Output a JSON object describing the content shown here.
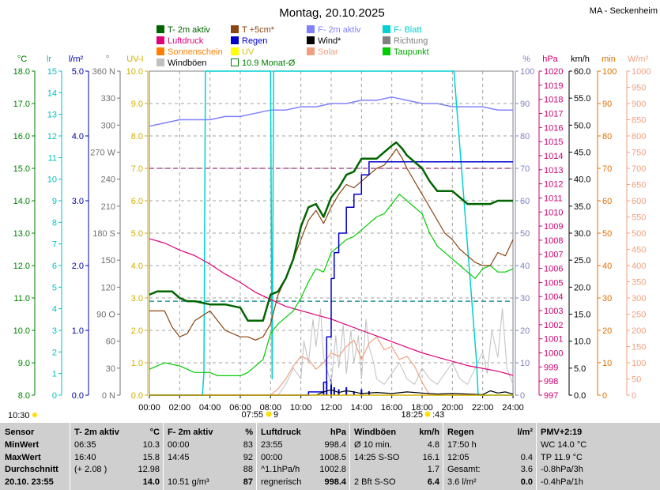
{
  "title": "Montag, 20.10.2025",
  "station": "MA - Seckenheim",
  "legend": [
    {
      "label": "T- 2m aktiv",
      "color": "#006400",
      "type": "box"
    },
    {
      "label": "T +5cm*",
      "color": "#8b4513",
      "type": "box"
    },
    {
      "label": "F- 2m aktiv",
      "color": "#8080ff",
      "type": "box"
    },
    {
      "label": "F- Blatt",
      "color": "#00d0d0",
      "type": "box"
    },
    {
      "label": "Luftdruck",
      "color": "#e0007a",
      "type": "box"
    },
    {
      "label": "Regen",
      "color": "#0000cc",
      "type": "box"
    },
    {
      "label": "Wind*",
      "color": "#000000",
      "type": "box"
    },
    {
      "label": "Richtung",
      "color": "#808080",
      "type": "box"
    },
    {
      "label": "Sonnenschein",
      "color": "#ff8000",
      "type": "box"
    },
    {
      "label": "UV",
      "color": "#ffff00",
      "type": "box"
    },
    {
      "label": "Solar",
      "color": "#f0a080",
      "type": "box"
    },
    {
      "label": "Taupunkt",
      "color": "#00cc00",
      "type": "box"
    },
    {
      "label": "Windböen",
      "color": "#c0c0c0",
      "type": "box"
    },
    {
      "label": "10.9 Monat-Ø",
      "color": "#008000",
      "type": "outline"
    }
  ],
  "legend_text_colors": {
    "T- 2m aktiv": "#006400",
    "T +5cm*": "#8b4513",
    "F- 2m aktiv": "#8080ff",
    "F- Blatt": "#00d0d0",
    "Luftdruck": "#e0007a",
    "Regen": "#0000cc",
    "Wind*": "#000000",
    "Richtung": "#808080",
    "Sonnenschein": "#ff8000",
    "UV": "#e0c000",
    "Solar": "#f0a080",
    "Taupunkt": "#00aa00",
    "Windböen": "#000000",
    "10.9 Monat-Ø": "#008000"
  },
  "axes": {
    "left": [
      {
        "unit": "°C",
        "color": "#008000",
        "ticks": [
          "18.0",
          "17.0",
          "16.0",
          "15.0",
          "14.0",
          "13.0",
          "12.0",
          "11.0",
          "10.0",
          "9.0",
          "8.0"
        ]
      },
      {
        "unit": "lr",
        "color": "#00c0c0",
        "ticks": [
          "15",
          "14",
          "13",
          "12",
          "11",
          "10",
          "9",
          "8",
          "7",
          "6",
          "5",
          "4",
          "3",
          "2",
          "1",
          "0"
        ]
      },
      {
        "unit": "l/m²",
        "color": "#0000aa",
        "ticks": [
          "5.0",
          "4.0",
          "3.0",
          "2.0",
          "1.0",
          "0.0"
        ]
      },
      {
        "unit": "°",
        "color": "#707070",
        "ticks": [
          "360 N",
          "330",
          "300",
          "270 W",
          "240",
          "210",
          "180 S",
          "150",
          "120",
          "90 O",
          "60",
          "30",
          "0 N"
        ]
      },
      {
        "unit": "UV-I",
        "color": "#d0b000",
        "ticks": [
          "10.0",
          "9.0",
          "8.0",
          "7.0",
          "6.0",
          "5.0",
          "4.0",
          "3.0",
          "2.0",
          "1.0",
          "0.0"
        ]
      }
    ],
    "right": [
      {
        "unit": "%",
        "color": "#8080c0",
        "ticks": [
          "100",
          "90",
          "80",
          "70",
          "60",
          "50",
          "40",
          "30",
          "20",
          "10",
          "0"
        ]
      },
      {
        "unit": "hPa",
        "color": "#d00070",
        "ticks": [
          "1020",
          "1019",
          "1018",
          "1017",
          "1016",
          "1015",
          "1014",
          "1013",
          "1012",
          "1011",
          "1010",
          "1009",
          "1008",
          "1007",
          "1006",
          "1005",
          "1004",
          "1003",
          "1002",
          "1001",
          "1000",
          "999",
          "998",
          "997"
        ]
      },
      {
        "unit": "km/h",
        "color": "#000000",
        "ticks": [
          "60.0",
          "55.0",
          "50.0",
          "45.0",
          "40.0",
          "35.0",
          "30.0",
          "25.0",
          "20.0",
          "15.0",
          "10.0",
          "5.0",
          "0.0"
        ]
      },
      {
        "unit": "min",
        "color": "#e07000",
        "ticks": [
          "100",
          "90",
          "80",
          "70",
          "60",
          "50",
          "40",
          "30",
          "20",
          "10",
          "0"
        ]
      },
      {
        "unit": "W/m²",
        "color": "#f0a080",
        "ticks": [
          "1000",
          "950",
          "900",
          "850",
          "800",
          "750",
          "700",
          "650",
          "600",
          "550",
          "500",
          "450",
          "400",
          "350",
          "300",
          "250",
          "200",
          "150",
          "100",
          "50",
          "0"
        ]
      }
    ],
    "x_ticks": [
      "00:00",
      "02:00",
      "04:00",
      "06:00",
      "08:00",
      "10:00",
      "12:00",
      "14:00",
      "16:00",
      "18:00",
      "20:00",
      "22:00",
      "24:00"
    ]
  },
  "sun": {
    "moonrise": "10:30",
    "sunrise": "07:55",
    "sunrise_suffix": "9",
    "sunset": "18:25",
    "sunset_suffix": ":43"
  },
  "chart_data": {
    "type": "line",
    "x_unit": "hours",
    "xlim": [
      0,
      24
    ],
    "series": [
      {
        "name": "T- 2m aktiv",
        "unit": "°C",
        "ylim": [
          8,
          18
        ],
        "x": [
          0,
          0.5,
          1,
          1.5,
          2,
          2.5,
          3,
          4,
          5,
          6,
          6.5,
          7,
          7.5,
          8,
          8.5,
          9,
          9.5,
          10,
          10.5,
          11,
          11.5,
          12,
          12.5,
          13,
          13.5,
          14,
          14.5,
          15,
          15.5,
          16,
          16.3,
          16.7,
          17,
          17.5,
          18,
          18.5,
          19,
          19.5,
          20,
          20.5,
          21,
          21.5,
          22,
          22.5,
          23,
          23.5,
          24
        ],
        "y": [
          11.1,
          11.2,
          11.2,
          11.2,
          11.0,
          10.9,
          10.9,
          10.8,
          10.8,
          10.7,
          10.3,
          10.3,
          10.3,
          11.1,
          11.2,
          11.6,
          12.2,
          13.2,
          13.8,
          13.9,
          13.5,
          14.1,
          14.4,
          14.8,
          14.9,
          15.3,
          15.3,
          15.3,
          15.5,
          15.7,
          15.8,
          15.6,
          15.4,
          15.2,
          15.0,
          14.6,
          14.3,
          14.3,
          14.3,
          14.1,
          13.9,
          13.9,
          13.9,
          13.9,
          14.0,
          14.0,
          14.0
        ]
      },
      {
        "name": "T +5cm*",
        "unit": "°C",
        "ylim": [
          8,
          18
        ],
        "x": [
          0,
          1,
          1.5,
          2,
          2.5,
          3,
          4,
          5,
          6,
          6.5,
          7,
          7.5,
          8,
          8.5,
          9,
          9.5,
          10,
          10.5,
          11,
          11.5,
          12,
          12.5,
          13,
          13.5,
          14,
          14.5,
          15,
          15.5,
          16,
          16.3,
          16.7,
          17,
          17.5,
          18,
          18.5,
          19,
          19.5,
          20,
          20.5,
          21,
          21.5,
          22,
          22.5,
          23,
          23.5,
          24
        ],
        "y": [
          10.6,
          10.6,
          10.1,
          9.8,
          9.9,
          10.3,
          10.6,
          10.0,
          9.8,
          9.8,
          9.7,
          9.8,
          10.2,
          11.1,
          11.6,
          12.2,
          12.8,
          13.4,
          13.7,
          13.3,
          13.8,
          14.2,
          14.5,
          14.4,
          14.6,
          14.8,
          15.0,
          15.1,
          15.4,
          15.6,
          15.3,
          15.0,
          14.6,
          14.2,
          13.8,
          13.4,
          13.0,
          12.8,
          12.5,
          12.3,
          12.1,
          12.0,
          12.0,
          12.4,
          12.3,
          12.8
        ]
      },
      {
        "name": "Taupunkt",
        "unit": "°C",
        "ylim": [
          8,
          18
        ],
        "x": [
          0,
          1,
          2,
          2.5,
          3,
          3.5,
          4,
          4.5,
          5,
          6,
          6.5,
          7,
          7.5,
          8,
          8.5,
          9,
          9.5,
          10,
          10.5,
          11,
          11.5,
          12,
          12.5,
          13,
          13.5,
          14,
          14.5,
          15,
          15.5,
          16,
          16.5,
          17,
          17.5,
          18,
          18.5,
          19,
          19.5,
          20,
          20.5,
          21,
          21.5,
          22,
          22.5,
          23,
          23.5,
          24
        ],
        "y": [
          8.8,
          9.0,
          8.9,
          8.8,
          8.7,
          8.7,
          8.7,
          8.6,
          8.6,
          8.6,
          8.7,
          8.9,
          9.1,
          9.9,
          10.2,
          10.4,
          10.6,
          11.0,
          11.5,
          11.9,
          11.8,
          12.4,
          12.6,
          12.8,
          12.9,
          13.1,
          13.3,
          13.5,
          13.6,
          13.9,
          14.2,
          14.0,
          13.8,
          13.6,
          13.0,
          12.6,
          12.4,
          12.2,
          12.0,
          11.8,
          11.6,
          11.9,
          12.0,
          11.8,
          11.8,
          11.9
        ]
      },
      {
        "name": "F- 2m aktiv",
        "unit": "%",
        "ylim": [
          0,
          100
        ],
        "x": [
          0,
          1,
          2,
          3,
          4,
          5,
          6,
          7,
          8,
          9,
          10,
          11,
          12,
          13,
          14,
          15,
          16,
          17,
          18,
          19,
          20,
          21,
          22,
          23,
          24
        ],
        "y": [
          83,
          84,
          85,
          85,
          85,
          86,
          86,
          87,
          88,
          88,
          89,
          89,
          90,
          90,
          91,
          91,
          92,
          91,
          90,
          90,
          89,
          89,
          89,
          88,
          88
        ]
      },
      {
        "name": "F- Blatt",
        "unit": "%",
        "ylim": [
          0,
          100
        ],
        "x": [
          0,
          3.5,
          3.6,
          3.7,
          8.0,
          8.1,
          8.2,
          19.9,
          20.0,
          20.1,
          21.6,
          21.7,
          24
        ],
        "y": [
          0,
          0,
          7,
          100,
          100,
          5,
          100,
          100,
          100,
          100,
          10,
          0,
          0
        ]
      },
      {
        "name": "Luftdruck",
        "unit": "hPa",
        "ylim": [
          997,
          1020
        ],
        "x": [
          0,
          1,
          2,
          3,
          4,
          5,
          6,
          7,
          8,
          9,
          10,
          11,
          12,
          13,
          14,
          15,
          16,
          17,
          18,
          19,
          20,
          21,
          22,
          23,
          24
        ],
        "y": [
          1008.1,
          1007.8,
          1007.3,
          1006.9,
          1006.3,
          1005.6,
          1005.0,
          1004.3,
          1003.8,
          1003.3,
          1003.0,
          1002.7,
          1002.4,
          1002.0,
          1001.6,
          1001.2,
          1000.8,
          1000.4,
          1000.0,
          999.7,
          999.4,
          999.1,
          998.9,
          998.7,
          998.4
        ]
      },
      {
        "name": "Regen",
        "unit": "l/m²",
        "ylim": [
          0,
          5
        ],
        "x": [
          0,
          9.5,
          10.5,
          11.5,
          11.7,
          12.0,
          12.2,
          12.5,
          13.0,
          13.5,
          14.0,
          14.5,
          15.0,
          16.0,
          17.0,
          18.0,
          24
        ],
        "y": [
          0,
          0,
          0.05,
          0.2,
          0.9,
          1.8,
          2.2,
          2.5,
          2.9,
          3.1,
          3.4,
          3.6,
          3.6,
          3.6,
          3.6,
          3.6,
          3.6
        ]
      },
      {
        "name": "Wind*",
        "unit": "km/h",
        "ylim": [
          0,
          60
        ],
        "x": [
          0,
          11,
          11.5,
          12,
          12.5,
          13,
          13.5,
          14,
          15,
          16,
          17,
          18,
          19,
          20,
          21,
          22,
          22.5,
          23,
          23.5,
          24
        ],
        "y": [
          0,
          0,
          0.6,
          1.0,
          0.5,
          0.8,
          0.6,
          0.3,
          0.5,
          0.3,
          0.6,
          0.4,
          0.2,
          0.3,
          0.2,
          0.1,
          0.8,
          0.4,
          0.6,
          0.2
        ]
      },
      {
        "name": "Windböen",
        "unit": "km/h",
        "ylim": [
          0,
          60
        ],
        "x": [
          0,
          8.5,
          9,
          9.5,
          10,
          10.2,
          10.5,
          10.8,
          11,
          11.3,
          11.5,
          11.8,
          12,
          12.3,
          12.5,
          12.8,
          13,
          13.3,
          13.5,
          13.8,
          14,
          14.3,
          14.5,
          14.8,
          15,
          15.5,
          16,
          16.5,
          17,
          17.5,
          18,
          18.5,
          19,
          19.5,
          20,
          20.5,
          21,
          21.5,
          22,
          22.3,
          22.6,
          23,
          23.3,
          23.6,
          24
        ],
        "y": [
          0,
          0,
          2,
          5,
          3,
          10,
          6,
          14,
          9,
          16,
          7,
          4,
          2,
          11,
          5,
          13,
          4,
          12,
          6,
          11,
          3,
          14,
          9,
          6,
          3,
          2,
          4,
          6,
          3,
          2,
          5,
          3,
          2,
          4,
          6,
          3,
          2,
          5,
          8,
          4,
          12,
          7,
          16,
          5,
          2
        ]
      },
      {
        "name": "Solar",
        "unit": "W/m²",
        "ylim": [
          0,
          1000
        ],
        "x": [
          0,
          8,
          8.5,
          9,
          9.5,
          10,
          10.5,
          11,
          11.5,
          12,
          12.5,
          13,
          13.5,
          14,
          14.5,
          15,
          15.5,
          16,
          16.5,
          17,
          17.5,
          18,
          18.5,
          24
        ],
        "y": [
          0,
          0,
          20,
          50,
          90,
          120,
          110,
          80,
          100,
          130,
          120,
          150,
          170,
          110,
          160,
          180,
          140,
          150,
          110,
          120,
          90,
          40,
          0,
          0
        ]
      },
      {
        "name": "Sonnenschein",
        "unit": "min",
        "ylim": [
          0,
          100
        ],
        "x": [
          0,
          24
        ],
        "y": [
          0,
          0
        ]
      },
      {
        "name": "UV",
        "unit": "UV-I",
        "ylim": [
          0,
          10
        ],
        "x": [
          0,
          24
        ],
        "y": [
          0,
          0
        ]
      }
    ],
    "reference_lines": [
      {
        "name": "10.9 Monat-Ø",
        "unit": "°C",
        "value": 10.9
      },
      {
        "name": "Luftdruck-Marke",
        "unit": "hPa",
        "value": 1013.1
      }
    ]
  },
  "summary": [
    {
      "hdr_l": "Sensor",
      "hdr_r": "",
      "rows": [
        [
          "MinWert",
          ""
        ],
        [
          "MaxWert",
          ""
        ],
        [
          "Durchschnitt",
          ""
        ],
        [
          "20.10. 23:55",
          ""
        ]
      ]
    },
    {
      "hdr_l": "T- 2m aktiv",
      "hdr_r": "°C",
      "rows": [
        [
          "06:35",
          "10.3"
        ],
        [
          "16:40",
          "15.8"
        ],
        [
          "(+ 2.08 )",
          "12.98"
        ],
        [
          "",
          "14.0"
        ]
      ]
    },
    {
      "hdr_l": "F- 2m aktiv",
      "hdr_r": "%",
      "rows": [
        [
          "00:00",
          "83"
        ],
        [
          "14:45",
          "92"
        ],
        [
          "",
          "88"
        ],
        [
          "10.51 g/m³",
          "87"
        ]
      ]
    },
    {
      "hdr_l": "Luftdruck",
      "hdr_r": "hPa",
      "rows": [
        [
          "23:55",
          "998.4"
        ],
        [
          "00:00",
          "1008.5"
        ],
        [
          "^1.1hPa/h",
          "1002.8"
        ],
        [
          "regnerisch",
          "998.4"
        ]
      ]
    },
    {
      "hdr_l": "Windböen",
      "hdr_r": "km/h",
      "rows": [
        [
          "Ø 10 min.",
          "4.8"
        ],
        [
          "14:25    S-SO",
          "16.1"
        ],
        [
          "",
          "1.7"
        ],
        [
          "2 Bft S-SO",
          "6.4"
        ]
      ]
    },
    {
      "hdr_l": "Regen",
      "hdr_r": "l/m²",
      "rows": [
        [
          "17:50 h",
          ""
        ],
        [
          "12:05",
          "0.4"
        ],
        [
          "Gesamt:",
          "3.6"
        ],
        [
          "3.6 l/m²",
          "0.0"
        ]
      ]
    },
    {
      "hdr_l": "PMV+2:19",
      "hdr_r": "",
      "rows": [
        [
          "WC 14.0 °C",
          ""
        ],
        [
          "TP 11.9 °C",
          ""
        ],
        [
          "-0.8hPa/3h",
          ""
        ],
        [
          "-0.4hPa/1h",
          ""
        ]
      ]
    }
  ]
}
